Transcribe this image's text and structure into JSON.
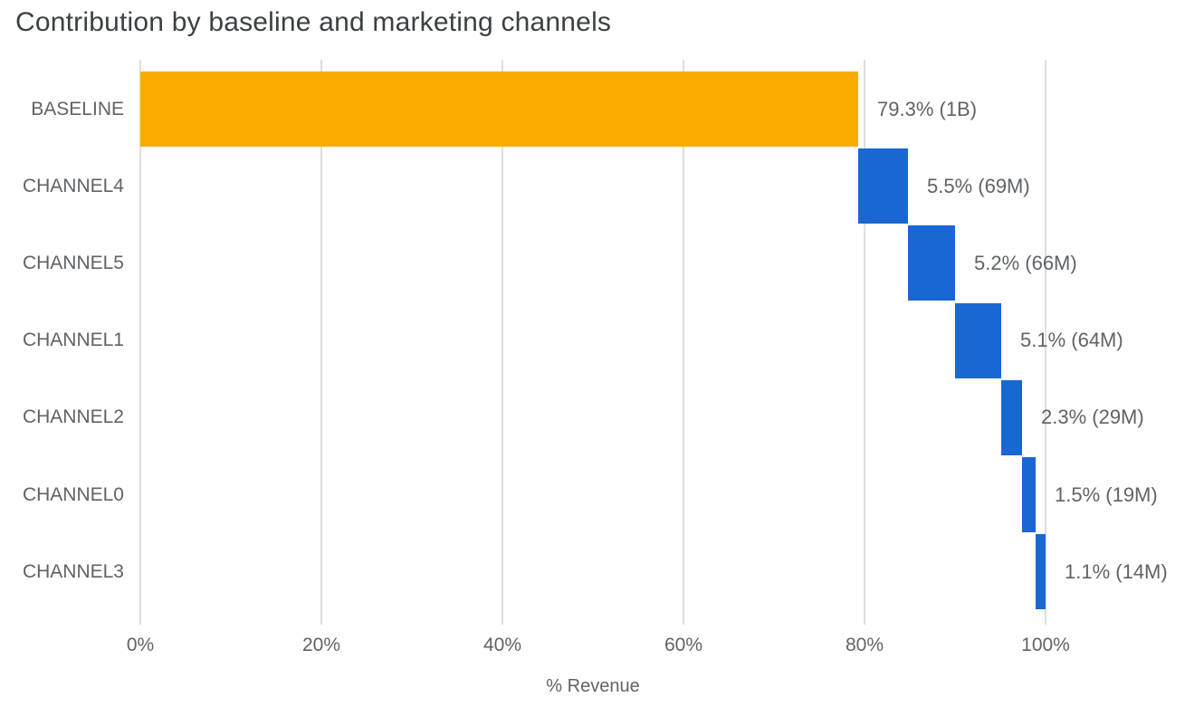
{
  "page": {
    "background": "#FFFFFF"
  },
  "chart_data": {
    "type": "bar",
    "subtype": "waterfall",
    "orientation": "horizontal",
    "title": "Contribution by baseline and marketing channels",
    "xlabel": "% Revenue",
    "xlim": [
      0,
      100
    ],
    "grid": "vertical-only",
    "legend": "none",
    "x_ticks": [
      {
        "value": 0,
        "label": "0%"
      },
      {
        "value": 20,
        "label": "20%"
      },
      {
        "value": 40,
        "label": "40%"
      },
      {
        "value": 60,
        "label": "60%"
      },
      {
        "value": 80,
        "label": "80%"
      },
      {
        "value": 100,
        "label": "100%"
      }
    ],
    "categories": [
      "BASELINE",
      "CHANNEL4",
      "CHANNEL5",
      "CHANNEL1",
      "CHANNEL2",
      "CHANNEL0",
      "CHANNEL3"
    ],
    "bars": [
      {
        "category": "BASELINE",
        "percent": 79.3,
        "amount": "1B",
        "label": "79.3% (1B)",
        "color": "#F9AB00"
      },
      {
        "category": "CHANNEL4",
        "percent": 5.5,
        "amount": "69M",
        "label": "5.5% (69M)",
        "color": "#1967D2"
      },
      {
        "category": "CHANNEL5",
        "percent": 5.2,
        "amount": "66M",
        "label": "5.2% (66M)",
        "color": "#1967D2"
      },
      {
        "category": "CHANNEL1",
        "percent": 5.1,
        "amount": "64M",
        "label": "5.1% (64M)",
        "color": "#1967D2"
      },
      {
        "category": "CHANNEL2",
        "percent": 2.3,
        "amount": "29M",
        "label": "2.3% (29M)",
        "color": "#1967D2"
      },
      {
        "category": "CHANNEL0",
        "percent": 1.5,
        "amount": "19M",
        "label": "1.5% (19M)",
        "color": "#1967D2"
      },
      {
        "category": "CHANNEL3",
        "percent": 1.1,
        "amount": "14M",
        "label": "1.1% (14M)",
        "color": "#1967D2"
      }
    ],
    "colors": {
      "baseline_bar": "#F9AB00",
      "channel_bar": "#1967D2",
      "gridline": "#DDDEE1",
      "label_text": "#5F6368",
      "title_text": "#3C4043"
    }
  }
}
